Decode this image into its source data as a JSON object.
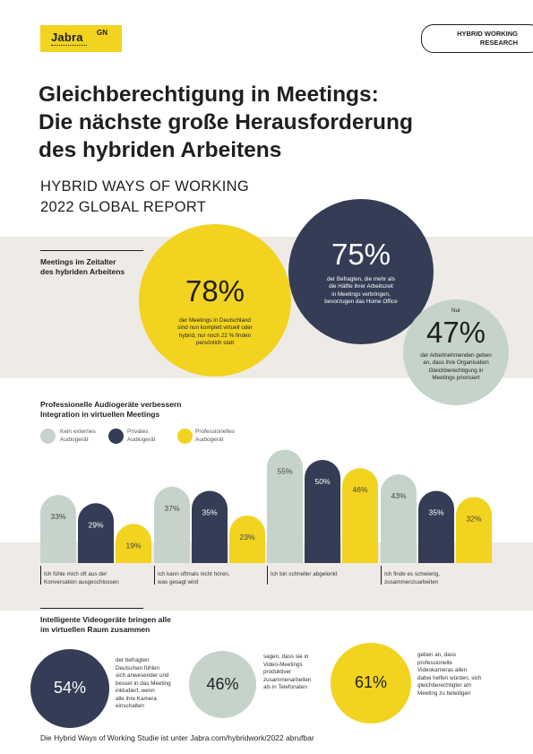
{
  "header": {
    "logo_text": "Jabra",
    "logo_sup": "GN",
    "badge": "HYBRID WORKING\nRESEARCH"
  },
  "title": "Gleichberechtigung in Meetings:\nDie nächste große Herausforderung\ndes hybriden Arbeitens",
  "subtitle": "HYBRID WAYS OF WORKING\n2022 GLOBAL REPORT",
  "section1": {
    "heading": "Meetings im Zeitalter\ndes hybriden Arbeitens",
    "stats": [
      {
        "value": "78%",
        "caption": "der Meetings in Deutschland\nsind nun komplett virtuell oder\nhybrid, nur noch 22 % finden\npersönlich statt",
        "color": "#f2d31f"
      },
      {
        "value": "75%",
        "caption": "der Befragten, die mehr als\ndie Hälfte ihrer Arbeitszeit\nin Meetings verbringen,\nbevorzugen das Home Office",
        "color": "#343d55"
      },
      {
        "prefix": "Nur",
        "value": "47%",
        "caption": "der Arbeitnehmenden geben\nan, dass ihre Organisation\nGleichberechtigung in\nMeetings priorisiert",
        "color": "#c6d3cb"
      }
    ]
  },
  "section2": {
    "heading": "Professionelle Audiogeräte verbessern\nIntegration in virtuellen Meetings",
    "legend": [
      {
        "label": "Kein externes\nAudiogerät",
        "color": "#c6d3cb"
      },
      {
        "label": "Privates\nAudiogerät",
        "color": "#343d55"
      },
      {
        "label": "Professionelles\nAudiogerät",
        "color": "#f2d31f"
      }
    ]
  },
  "chart_data": {
    "type": "bar",
    "categories": [
      "Ich fühle mich oft aus der\nKonversation ausgeschlossen",
      "Ich kann oftmals nicht hören,\nwas gesagt wird",
      "Ich bin schneller abgelenkt",
      "Ich finde es schwierig,\nzusammenzuarbeiten"
    ],
    "series": [
      {
        "name": "Kein externes Audiogerät",
        "values": [
          33,
          37,
          55,
          43
        ],
        "color": "#c6d3cb",
        "label_color": "#444444"
      },
      {
        "name": "Privates Audiogerät",
        "values": [
          29,
          35,
          50,
          35
        ],
        "color": "#343d55",
        "label_color": "#ffffff"
      },
      {
        "name": "Professionelles Audiogerät",
        "values": [
          19,
          23,
          46,
          32
        ],
        "color": "#f2d31f",
        "label_color": "#444444"
      }
    ],
    "value_suffix": "%",
    "ylim": [
      0,
      60
    ]
  },
  "section3": {
    "heading": "Intelligente Videogeräte bringen alle\nim virtuellen Raum zusammen",
    "stats": [
      {
        "value": "54%",
        "caption": "der befragten\nDeutschen fühlen\nsich anwesender und\nbesser in das Meeting\ninkludiert, wenn\nalle ihre Kamera\neinschalten",
        "color": "#343d55"
      },
      {
        "value": "46%",
        "caption": "sagen, dass sie in\nVideo-Meetings\nproduktiver\nzusammenarbeiten\nals in Telefonaten",
        "color": "#c6d3cb"
      },
      {
        "value": "61%",
        "caption": "geben an, dass\nprofessionelle\nVideokameras allen\ndabei helfen würden, sich\ngleichberechtigter am\nMeeting zu beteiligen",
        "color": "#f2d31f"
      }
    ]
  },
  "footer": "Die Hybrid Ways of Working Studie ist unter Jabra.com/hybridwork/2022 abrufbar"
}
